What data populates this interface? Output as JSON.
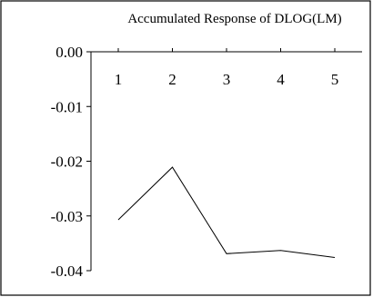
{
  "chart_data": {
    "type": "line",
    "title": "Accumulated Response of DLOG(LM)",
    "xlabel": "",
    "ylabel": "",
    "categories": [
      "1",
      "2",
      "3",
      "4",
      "5"
    ],
    "x": [
      1,
      2,
      3,
      4,
      5
    ],
    "series": [
      {
        "values": [
          -0.0307,
          -0.0211,
          -0.0369,
          -0.0363,
          -0.0376
        ]
      }
    ],
    "ylim": [
      -0.04,
      0.0
    ],
    "yticks": [
      "0.00",
      "-0.01",
      "-0.02",
      "-0.03",
      "-0.04"
    ],
    "ytick_values": [
      0.0,
      -0.01,
      -0.02,
      -0.03,
      -0.04
    ],
    "grid": false,
    "legend": "none",
    "line_color": "#000000"
  }
}
